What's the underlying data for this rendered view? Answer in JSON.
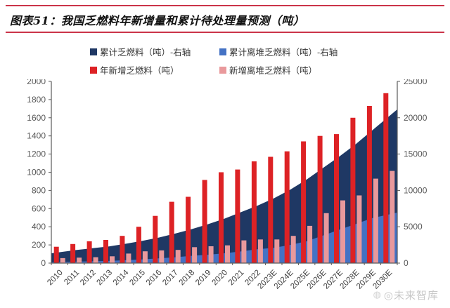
{
  "header": {
    "title": "图表51：我国乏燃料年新增量和累计待处理量预测（吨）"
  },
  "colors": {
    "rule_red": "#cb3449",
    "axis_line": "#595959",
    "tick_label": "#595959",
    "x_label": "#3f3f3f"
  },
  "watermark": {
    "logo": "◍",
    "text": "◎未来智库"
  },
  "chart_data": {
    "type": "combo",
    "title": "我国乏燃料年新增量和累计待处理量预测（吨）",
    "categories": [
      "2010",
      "2011",
      "2012",
      "2013",
      "2014",
      "2015",
      "2016",
      "2017",
      "2018",
      "2019",
      "2020",
      "2021",
      "2022",
      "2023E",
      "2024E",
      "2025E",
      "2026E",
      "2027E",
      "2028E",
      "2029E",
      "2030E"
    ],
    "left_axis": {
      "min": 0,
      "max": 2000,
      "ticks": [
        "0",
        "200",
        "400",
        "600",
        "800",
        "1000",
        "1200",
        "1400",
        "1600",
        "1800",
        "2000"
      ]
    },
    "right_axis": {
      "min": 0,
      "max": 25000,
      "ticks": [
        "0",
        "5000",
        "10000",
        "15000",
        "20000",
        "25000"
      ]
    },
    "grid": "off",
    "legend_position": "top",
    "series": [
      {
        "name": "累计乏燃料（吨）-右轴",
        "type": "area",
        "axis": "right",
        "color": "#1f3864",
        "values": [
          1500,
          1800,
          2050,
          2300,
          2650,
          3050,
          3500,
          4050,
          4650,
          5350,
          6100,
          7000,
          7900,
          8900,
          10100,
          11500,
          13100,
          14700,
          16400,
          18300,
          20200
        ]
      },
      {
        "name": "累计离堆乏燃料（吨）-右轴",
        "type": "area",
        "axis": "right",
        "color": "#4472c4",
        "values": [
          150,
          200,
          250,
          300,
          400,
          500,
          650,
          800,
          1000,
          1150,
          1350,
          1600,
          1900,
          2100,
          2500,
          3000,
          3800,
          4600,
          5400,
          6200,
          6700
        ]
      },
      {
        "name": "年新增乏燃料（吨）",
        "type": "bar",
        "axis": "left",
        "color": "#dd2225",
        "values": [
          180,
          210,
          240,
          255,
          300,
          400,
          520,
          675,
          730,
          915,
          1000,
          1030,
          1120,
          1170,
          1230,
          1340,
          1400,
          1420,
          1600,
          1730,
          1870
        ]
      },
      {
        "name": "新增离堆乏燃料（吨）",
        "type": "bar",
        "axis": "left",
        "color": "#e9999c",
        "values": [
          55,
          60,
          65,
          75,
          105,
          130,
          140,
          145,
          175,
          185,
          195,
          250,
          260,
          260,
          300,
          410,
          550,
          690,
          745,
          930,
          1015
        ]
      }
    ]
  }
}
